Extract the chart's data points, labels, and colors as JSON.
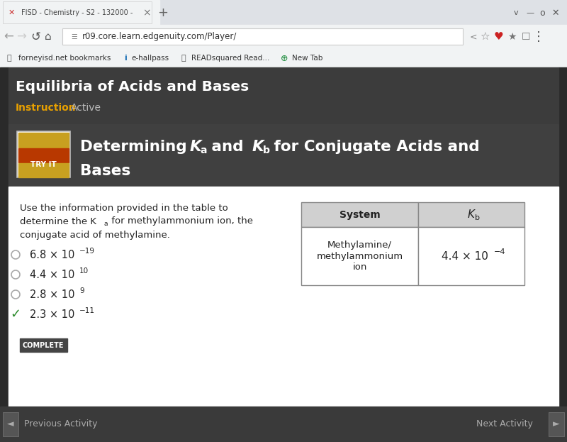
{
  "browser_tab_text": "FISD - Chemistry - S2 - 132000 -",
  "url_text": "r09.core.learn.edgenuity.com/Player/",
  "page_title": "Equilibria of Acids and Bases",
  "instruction_label": "Instruction",
  "active_label": "Active",
  "try_it_label": "TRY IT",
  "options": [
    {
      "text": "6.8 × 10",
      "exp": "−19",
      "correct": false
    },
    {
      "text": "4.4 × 10",
      "exp": "10",
      "correct": false
    },
    {
      "text": "2.8 × 10",
      "exp": "9",
      "correct": false
    },
    {
      "text": "2.3 × 10",
      "exp": "−11",
      "correct": true
    }
  ],
  "complete_button": "COMPLETE",
  "table_header_system": "System",
  "table_header_kb": "K",
  "table_header_kb_sub": "b",
  "table_row_system_lines": [
    "Methylamine/",
    "methylammonium",
    "ion"
  ],
  "table_row_kb": "4.4 × 10",
  "table_row_kb_exp": "−4",
  "nav_prev": "Previous Activity",
  "nav_next": "Next Activity",
  "colors": {
    "chrome_top": "#dee1e6",
    "chrome_bg": "#f1f3f4",
    "dark_bg": "#3c3c3c",
    "banner_bg": "#404040",
    "white": "#ffffff",
    "try_it_stripe1": "#c8a020",
    "try_it_stripe2": "#b83800",
    "instruction_color": "#e8a000",
    "active_color": "#bbbbbb",
    "table_header_bg": "#d0d0d0",
    "table_border": "#888888",
    "checkmark_color": "#2a8a2a",
    "complete_bg": "#444444",
    "complete_text": "#ffffff",
    "nav_bar": "#3a3a3a",
    "nav_text": "#aaaaaa",
    "dark_strip": "#2a2a2a",
    "page_title_color": "#ffffff",
    "text_dark": "#222222",
    "text_gray": "#555555"
  },
  "figsize": [
    8.0,
    6.23
  ],
  "dpi": 100
}
